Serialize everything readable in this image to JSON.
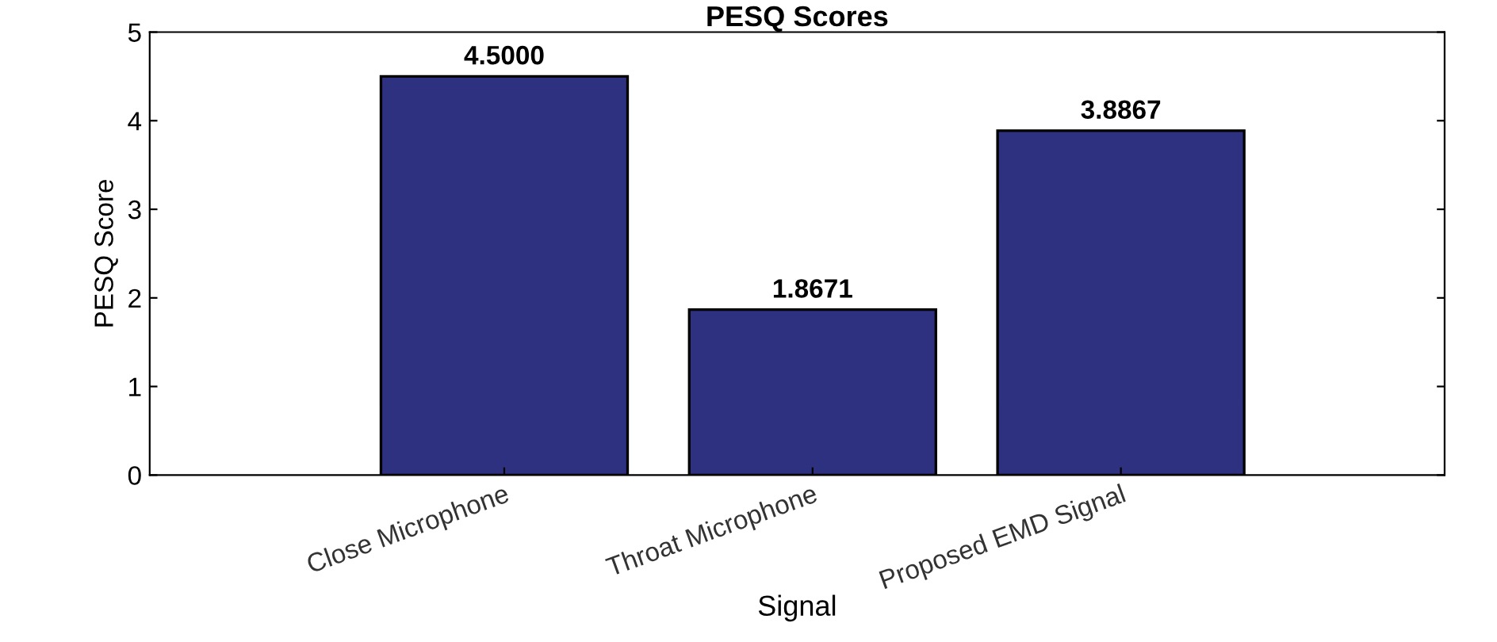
{
  "chart_data": {
    "type": "bar",
    "title": "PESQ Scores",
    "xlabel": "Signal",
    "ylabel": "PESQ Score",
    "categories": [
      "Close Microphone",
      "Throat Microphone",
      "Proposed EMD Signal"
    ],
    "values": [
      4.5,
      1.8671,
      3.8867
    ],
    "value_labels": [
      "4.5000",
      "1.8671",
      "3.8867"
    ],
    "color": "#2e3180",
    "ylim": [
      0,
      5
    ],
    "yticks": [
      0,
      1,
      2,
      3,
      4,
      5
    ],
    "grid": false,
    "legend": false
  }
}
